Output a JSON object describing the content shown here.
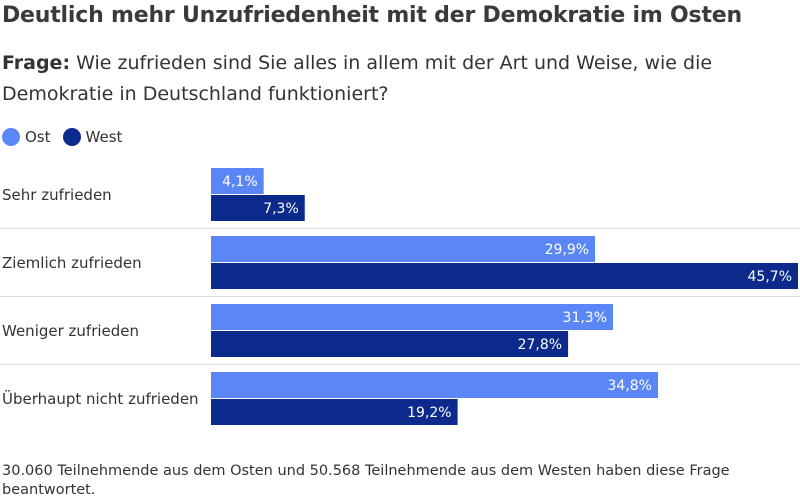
{
  "title": "Deutlich mehr Unzufriedenheit mit der Demokratie im Osten",
  "question": {
    "prefix": "Frage:",
    "text": "Wie zufrieden sind Sie alles in allem mit der Art und Weise, wie die Demokratie in Deutschland funktioniert?"
  },
  "colors": {
    "ost": "#5b86f5",
    "west": "#0b2a8c"
  },
  "footnote": "30.060 Teilnehmende aus dem Osten und 50.568 Teilnehmende aus dem Westen haben diese Frage beantwortet.",
  "chart_data": {
    "type": "bar",
    "orientation": "horizontal",
    "categories": [
      "Sehr zufrieden",
      "Ziemlich zufrieden",
      "Weniger zufrieden",
      "Überhaupt nicht zufrieden"
    ],
    "series": [
      {
        "name": "Ost",
        "values": [
          4.1,
          29.9,
          31.3,
          34.8
        ],
        "labels": [
          "4,1%",
          "29,9%",
          "31,3%",
          "34,8%"
        ]
      },
      {
        "name": "West",
        "values": [
          7.3,
          45.7,
          27.8,
          19.2
        ],
        "labels": [
          "7,3%",
          "45,7%",
          "27,8%",
          "19,2%"
        ]
      }
    ],
    "xlim": [
      0,
      45.7
    ],
    "legend": "top-left",
    "grid": false
  }
}
